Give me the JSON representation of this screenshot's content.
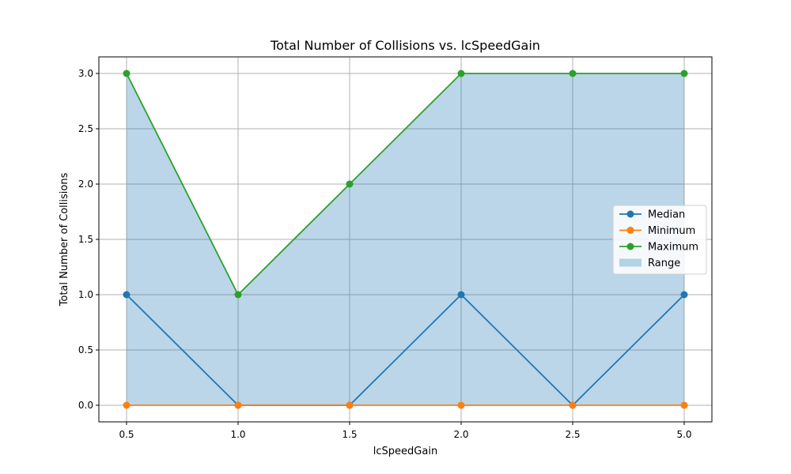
{
  "chart_data": {
    "type": "line",
    "title": "Total Number of Collisions vs. lcSpeedGain",
    "xlabel": "lcSpeedGain",
    "ylabel": "Total Number of Collisions",
    "categories": [
      "0.5",
      "1.0",
      "1.5",
      "2.0",
      "2.5",
      "5.0"
    ],
    "ylim": [
      -0.15,
      3.15
    ],
    "yticks": [
      0.0,
      0.5,
      1.0,
      1.5,
      2.0,
      2.5,
      3.0
    ],
    "ytick_labels": [
      "0.0",
      "0.5",
      "1.0",
      "1.5",
      "2.0",
      "2.5",
      "3.0"
    ],
    "grid": true,
    "legend_position": "center-right",
    "series": [
      {
        "name": "Median",
        "values": [
          1,
          0,
          0,
          1,
          0,
          1
        ],
        "color": "#1f77b4"
      },
      {
        "name": "Minimum",
        "values": [
          0,
          0,
          0,
          0,
          0,
          0
        ],
        "color": "#ff7f0e"
      },
      {
        "name": "Maximum",
        "values": [
          3,
          1,
          2,
          3,
          3,
          3
        ],
        "color": "#2ca02c"
      }
    ],
    "range": {
      "name": "Range",
      "lower": [
        0,
        0,
        0,
        0,
        0,
        0
      ],
      "upper": [
        3,
        1,
        2,
        3,
        3,
        3
      ],
      "color": "#1f77b4",
      "opacity": 0.3
    }
  }
}
